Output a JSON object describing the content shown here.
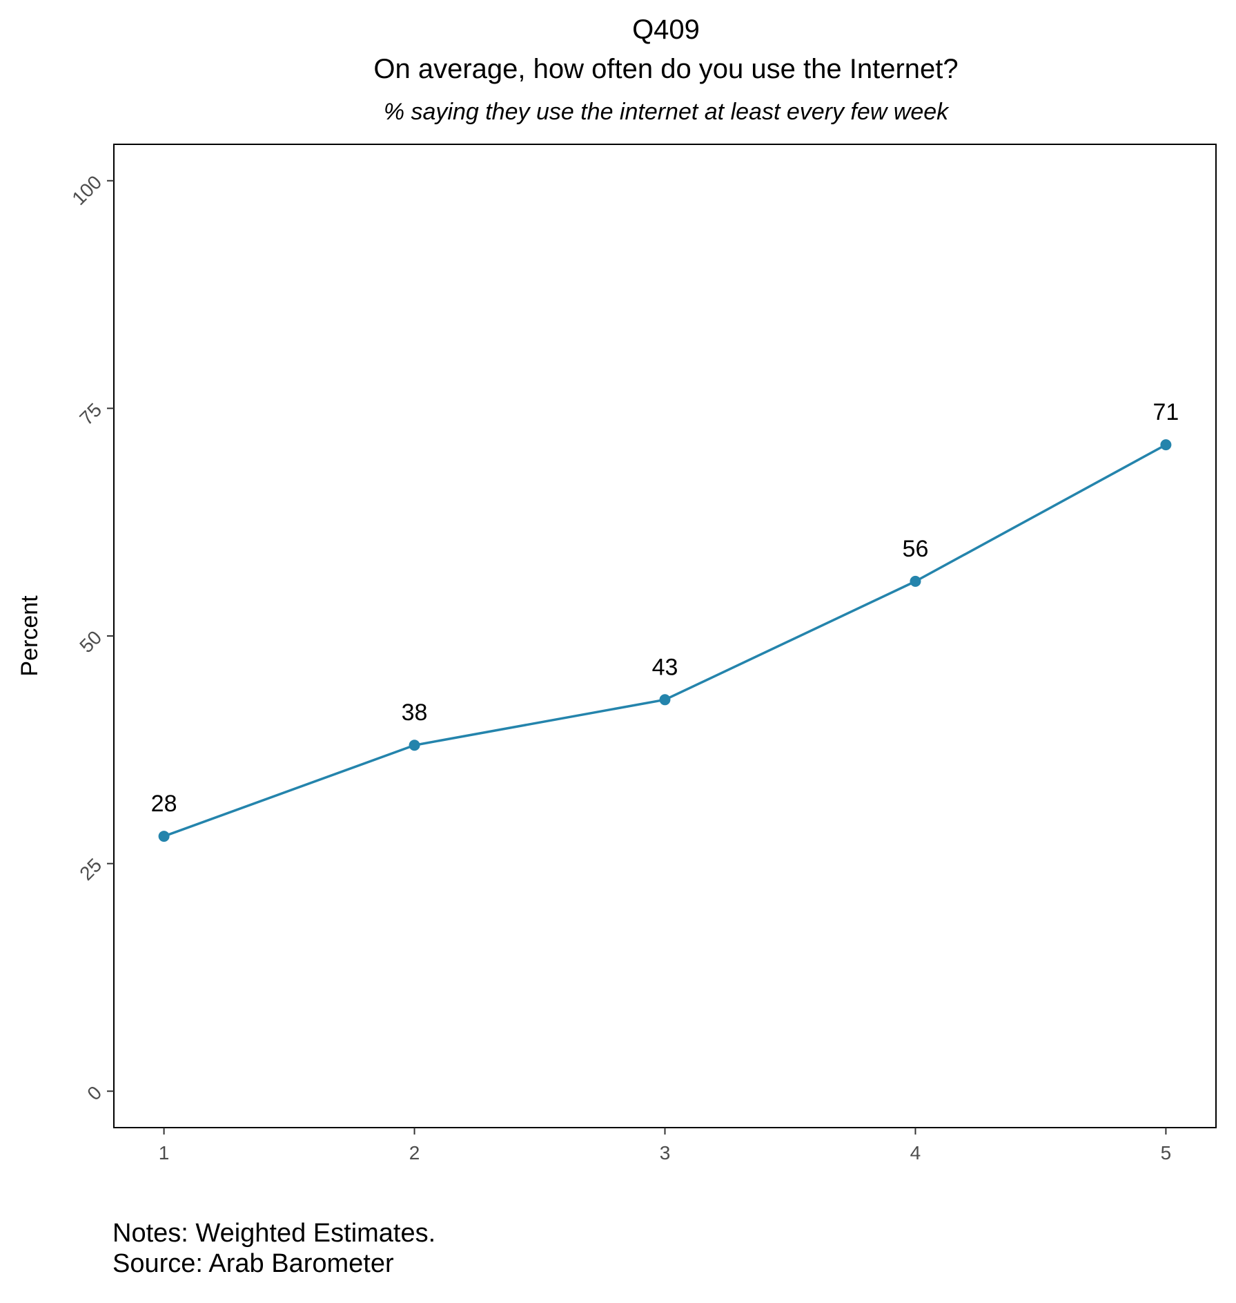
{
  "chart_data": {
    "type": "line",
    "title": "Q409",
    "subtitle": "On average, how often do you use the Internet?",
    "description": "% saying they use the internet at least every few week",
    "xlabel": "",
    "ylabel": "Percent",
    "x": [
      1,
      2,
      3,
      4,
      5
    ],
    "x_tick_labels": [
      "1",
      "2",
      "3",
      "4",
      "5"
    ],
    "xlim": [
      0.8,
      5.2
    ],
    "ylim": [
      -4,
      104
    ],
    "y_ticks": [
      0,
      25,
      50,
      75,
      100
    ],
    "y_tick_labels": [
      "0",
      "25",
      "50",
      "75",
      "100"
    ],
    "series": [
      {
        "values": [
          28,
          38,
          43,
          56,
          71
        ],
        "data_labels": [
          "28",
          "38",
          "43",
          "56",
          "71"
        ],
        "color": "#2484ac"
      }
    ],
    "grid": false,
    "legend": "none"
  },
  "notes": "Notes: Weighted Estimates.",
  "source": "Source: Arab Barometer"
}
